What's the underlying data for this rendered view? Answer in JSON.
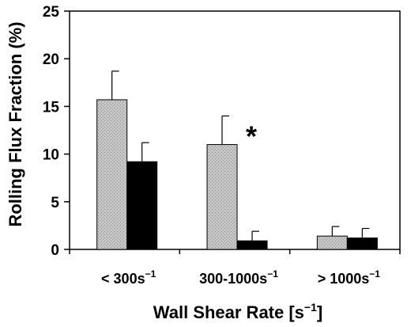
{
  "chart_data": {
    "type": "bar",
    "categories": [
      {
        "base": "< 300s",
        "sup": "−1"
      },
      {
        "base": "300-1000s",
        "sup": "−1"
      },
      {
        "base": "> 1000s",
        "sup": "−1"
      }
    ],
    "series": [
      {
        "color": "#c4c4c4",
        "pattern": "stipple",
        "values": [
          15.7,
          11.0,
          1.4
        ],
        "errors": [
          3.0,
          3.0,
          1.0
        ]
      },
      {
        "color": "#000000",
        "values": [
          9.2,
          0.9,
          1.2
        ],
        "errors": [
          2.0,
          1.0,
          1.0
        ]
      }
    ],
    "ylim": [
      0,
      25
    ],
    "yticks": [
      0,
      5,
      10,
      15,
      20,
      25
    ],
    "xlabel": {
      "base": "Wall Shear Rate [s",
      "sup": "−1",
      "end": "]"
    },
    "ylabel": "Rolling Flux Fraction (%)",
    "annotations": [
      {
        "text": "*",
        "category_index": 1,
        "series_index": 0
      }
    ],
    "grid": false
  }
}
